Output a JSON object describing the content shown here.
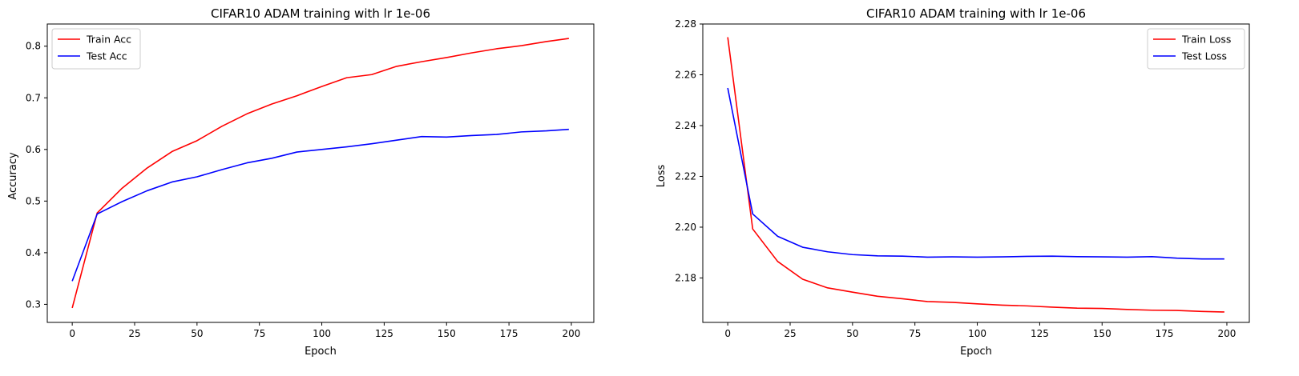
{
  "chart_data": [
    {
      "type": "line",
      "title": "CIFAR10 ADAM training with lr 1e-06",
      "xlabel": "Epoch",
      "ylabel": "Accuracy",
      "xlim": [
        -10,
        209
      ],
      "ylim": [
        0.265,
        0.843
      ],
      "xticks": [
        0,
        25,
        50,
        75,
        100,
        125,
        150,
        175,
        200
      ],
      "yticks": [
        0.3,
        0.4,
        0.5,
        0.6,
        0.7,
        0.8
      ],
      "ytick_decimals": 1,
      "legend": "top-left",
      "x": [
        0,
        10,
        20,
        30,
        40,
        50,
        60,
        70,
        80,
        90,
        100,
        110,
        120,
        130,
        140,
        150,
        160,
        170,
        180,
        190,
        199
      ],
      "series": [
        {
          "name": "Train Acc",
          "color": "#ff0000",
          "values": [
            0.293,
            0.477,
            0.525,
            0.564,
            0.596,
            0.617,
            0.645,
            0.669,
            0.688,
            0.704,
            0.722,
            0.739,
            0.745,
            0.761,
            0.77,
            0.778,
            0.787,
            0.795,
            0.801,
            0.809,
            0.815
          ]
        },
        {
          "name": "Test Acc",
          "color": "#0000ff",
          "values": [
            0.345,
            0.475,
            0.499,
            0.52,
            0.537,
            0.547,
            0.561,
            0.574,
            0.583,
            0.595,
            0.6,
            0.605,
            0.611,
            0.618,
            0.625,
            0.624,
            0.627,
            0.629,
            0.634,
            0.636,
            0.639
          ]
        }
      ]
    },
    {
      "type": "line",
      "title": "CIFAR10 ADAM training with lr 1e-06",
      "xlabel": "Epoch",
      "ylabel": "Loss",
      "xlim": [
        -10,
        209
      ],
      "ylim": [
        2.1625,
        2.28
      ],
      "xticks": [
        0,
        25,
        50,
        75,
        100,
        125,
        150,
        175,
        200
      ],
      "yticks": [
        2.18,
        2.2,
        2.22,
        2.24,
        2.26,
        2.28
      ],
      "ytick_decimals": 2,
      "legend": "top-right",
      "x": [
        0,
        10,
        20,
        30,
        40,
        50,
        60,
        70,
        80,
        90,
        100,
        110,
        120,
        130,
        140,
        150,
        160,
        170,
        180,
        190,
        199
      ],
      "series": [
        {
          "name": "Train Loss",
          "color": "#ff0000",
          "values": [
            2.2748,
            2.1993,
            2.1865,
            2.1795,
            2.1761,
            2.1744,
            2.1728,
            2.1718,
            2.1707,
            2.1704,
            2.1698,
            2.1693,
            2.169,
            2.1685,
            2.1681,
            2.168,
            2.1676,
            2.1673,
            2.1672,
            2.1668,
            2.1666
          ]
        },
        {
          "name": "Test Loss",
          "color": "#0000ff",
          "values": [
            2.2548,
            2.2052,
            2.1964,
            2.1921,
            2.1903,
            2.1892,
            2.1887,
            2.1886,
            2.1882,
            2.1883,
            2.1882,
            2.1883,
            2.1885,
            2.1886,
            2.1884,
            2.1883,
            2.1882,
            2.1884,
            2.1878,
            2.1875,
            2.1875
          ]
        }
      ]
    }
  ]
}
